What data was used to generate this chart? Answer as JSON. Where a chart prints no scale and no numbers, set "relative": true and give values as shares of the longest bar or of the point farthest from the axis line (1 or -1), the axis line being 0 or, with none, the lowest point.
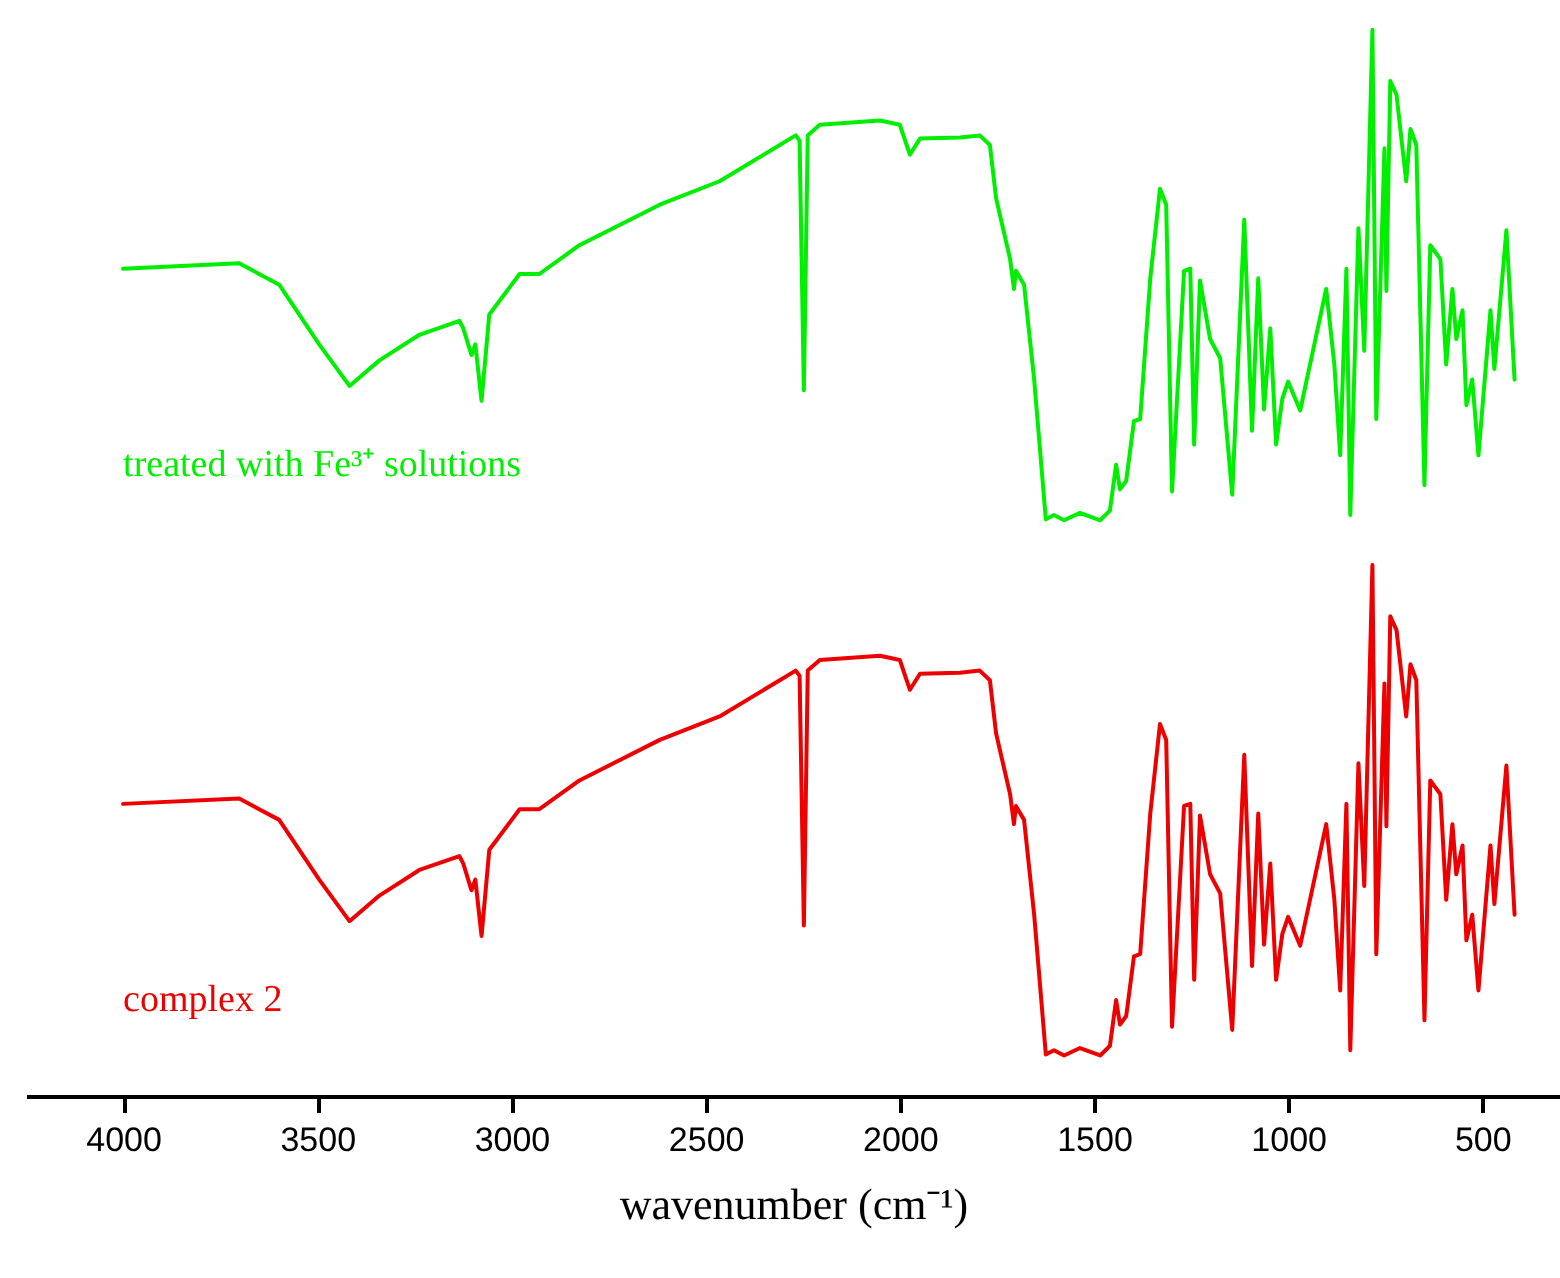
{
  "chart_data": {
    "type": "line",
    "relative": true,
    "xlabel": "wavenumber (cm⁻¹)",
    "xlim": [
      4250,
      300
    ],
    "tick_labels": "x",
    "xticks": [
      4000,
      3500,
      3000,
      2500,
      2000,
      1500,
      1000,
      500
    ],
    "x": [
      4000,
      3701,
      3598,
      3495,
      3417,
      3340,
      3237,
      3134,
      3124,
      3103,
      3093,
      3077,
      3057,
      2979,
      2928,
      2825,
      2618,
      2464,
      2309,
      2268,
      2258,
      2247,
      2237,
      2206,
      2051,
      2000,
      1974,
      1948,
      1845,
      1794,
      1768,
      1752,
      1716,
      1706,
      1701,
      1680,
      1654,
      1624,
      1603,
      1577,
      1536,
      1484,
      1459,
      1443,
      1433,
      1417,
      1397,
      1381,
      1355,
      1330,
      1314,
      1299,
      1268,
      1252,
      1242,
      1227,
      1201,
      1175,
      1144,
      1113,
      1093,
      1077,
      1062,
      1046,
      1031,
      1015,
      1000,
      969,
      902,
      881,
      866,
      850,
      840,
      819,
      804,
      783,
      773,
      752,
      747,
      737,
      721,
      696,
      685,
      670,
      649,
      634,
      608,
      593,
      577,
      567,
      551,
      541,
      526,
      510,
      479,
      469,
      438,
      417
    ],
    "series": [
      {
        "name": "treated with Fe³⁺ solutions",
        "color": "#00ee00",
        "values": [
          0.776,
          0.781,
          0.761,
          0.705,
          0.666,
          0.69,
          0.714,
          0.727,
          0.72,
          0.695,
          0.705,
          0.652,
          0.733,
          0.771,
          0.771,
          0.798,
          0.836,
          0.858,
          0.892,
          0.901,
          0.896,
          0.662,
          0.901,
          0.911,
          0.915,
          0.911,
          0.883,
          0.898,
          0.899,
          0.901,
          0.892,
          0.842,
          0.785,
          0.757,
          0.774,
          0.761,
          0.672,
          0.541,
          0.545,
          0.54,
          0.547,
          0.54,
          0.549,
          0.592,
          0.569,
          0.577,
          0.633,
          0.635,
          0.767,
          0.851,
          0.836,
          0.567,
          0.774,
          0.776,
          0.611,
          0.765,
          0.71,
          0.692,
          0.564,
          0.822,
          0.624,
          0.767,
          0.644,
          0.72,
          0.611,
          0.654,
          0.67,
          0.643,
          0.757,
          0.686,
          0.601,
          0.776,
          0.545,
          0.814,
          0.699,
          1,
          0.635,
          0.889,
          0.755,
          0.952,
          0.939,
          0.858,
          0.907,
          0.892,
          0.573,
          0.798,
          0.785,
          0.686,
          0.757,
          0.71,
          0.737,
          0.648,
          0.672,
          0.601,
          0.737,
          0.682,
          0.812,
          0.672
        ]
      },
      {
        "name": "complex 2",
        "color": "#ee0000",
        "values": [
          0.274,
          0.279,
          0.259,
          0.203,
          0.164,
          0.188,
          0.212,
          0.225,
          0.218,
          0.193,
          0.203,
          0.15,
          0.231,
          0.269,
          0.269,
          0.296,
          0.334,
          0.356,
          0.39,
          0.399,
          0.394,
          0.16,
          0.399,
          0.409,
          0.413,
          0.409,
          0.381,
          0.396,
          0.397,
          0.399,
          0.39,
          0.34,
          0.283,
          0.255,
          0.272,
          0.259,
          0.17,
          0.039,
          0.043,
          0.038,
          0.045,
          0.038,
          0.047,
          0.09,
          0.067,
          0.075,
          0.131,
          0.133,
          0.265,
          0.349,
          0.334,
          0.065,
          0.272,
          0.274,
          0.109,
          0.263,
          0.208,
          0.19,
          0.062,
          0.32,
          0.122,
          0.265,
          0.142,
          0.218,
          0.109,
          0.152,
          0.168,
          0.141,
          0.255,
          0.184,
          0.099,
          0.274,
          0.043,
          0.312,
          0.197,
          0.498,
          0.133,
          0.387,
          0.253,
          0.45,
          0.437,
          0.356,
          0.405,
          0.39,
          0.071,
          0.296,
          0.283,
          0.184,
          0.255,
          0.208,
          0.235,
          0.146,
          0.17,
          0.099,
          0.235,
          0.18,
          0.31,
          0.17
        ]
      }
    ]
  }
}
